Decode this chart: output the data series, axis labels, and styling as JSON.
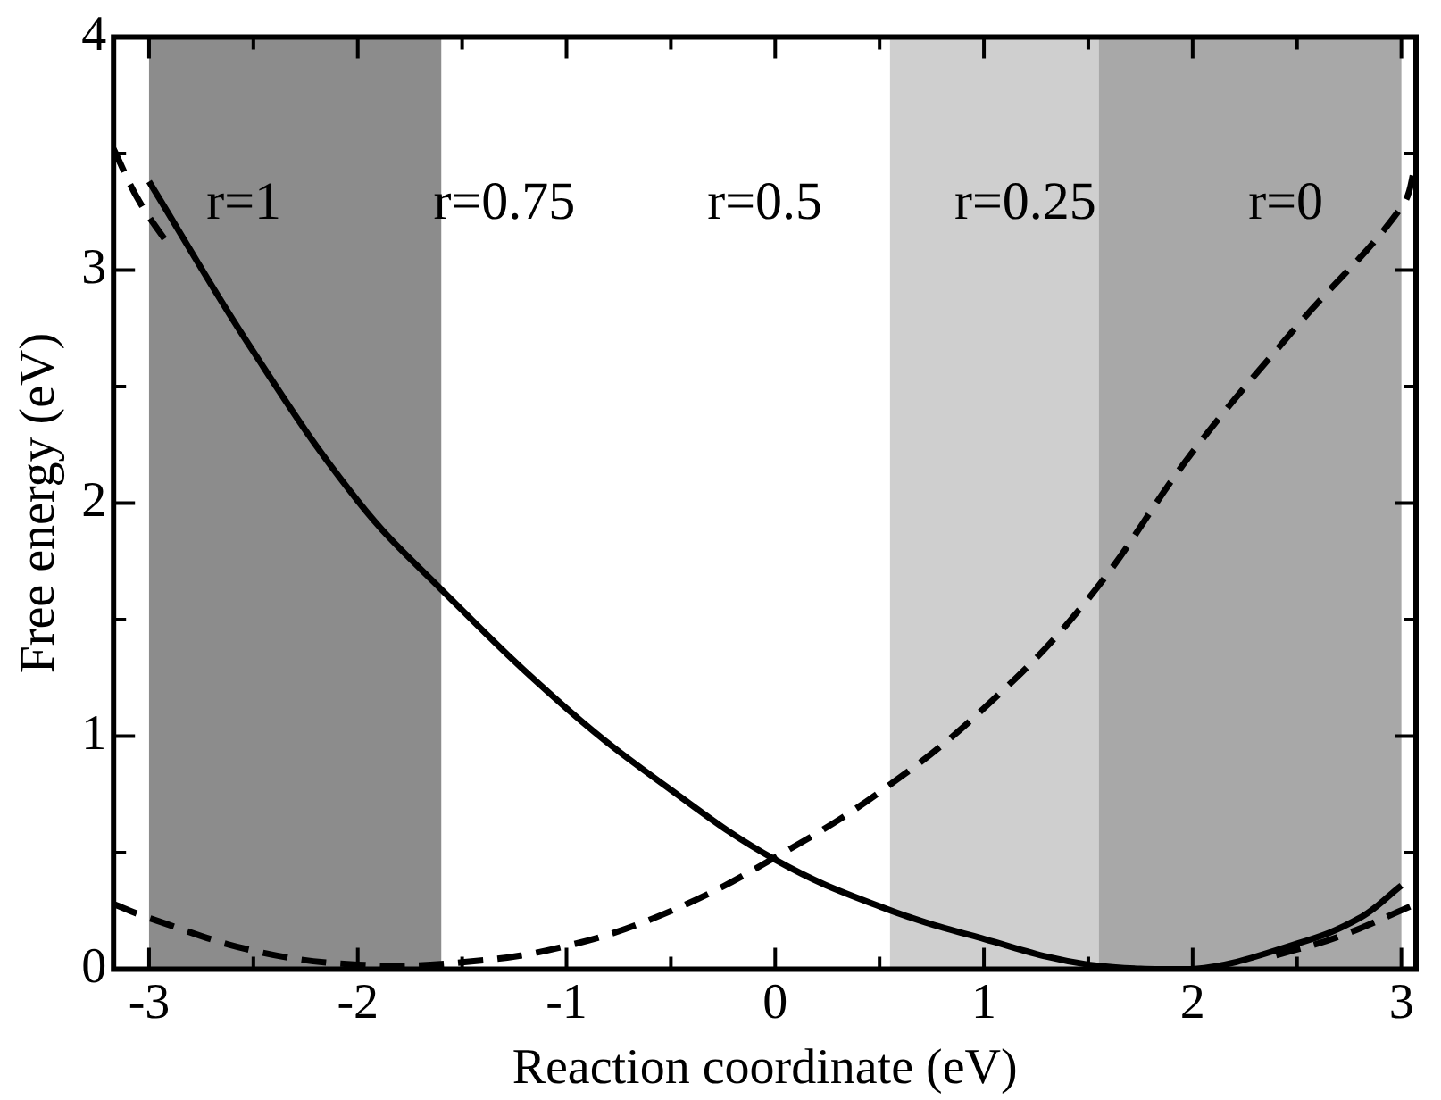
{
  "chart_data": {
    "type": "line",
    "xlabel": "Reaction coordinate (eV)",
    "ylabel": "Free energy (eV)",
    "xlim": [
      -3.17,
      3.07
    ],
    "ylim": [
      0,
      4
    ],
    "xticks": [
      -3,
      {
        "value": -2.5,
        "label": null
      },
      -2,
      {
        "value": -1.5,
        "label": null
      },
      -1,
      {
        "value": -0.5,
        "label": null
      },
      0,
      {
        "value": 0.5,
        "label": null
      },
      1,
      {
        "value": 1.5,
        "label": null
      },
      2,
      {
        "value": 2.5,
        "label": null
      },
      3
    ],
    "yticks": [
      0,
      {
        "value": 0.5,
        "label": null
      },
      1,
      {
        "value": 1.5,
        "label": null
      },
      2,
      {
        "value": 2.5,
        "label": null
      },
      3,
      {
        "value": 3.5,
        "label": null
      },
      4
    ],
    "grid": false,
    "legend": false,
    "marker": "none",
    "series": [
      {
        "color": "#000000",
        "line_style": "solid",
        "x": [
          -3,
          -2.5,
          -2,
          -1.6,
          -1,
          -0.5,
          0,
          0.5,
          1,
          1.5,
          2,
          2.5,
          2.8,
          3
        ],
        "values": [
          3.38,
          2.65,
          2.01,
          1.63,
          1.12,
          0.77,
          0.47,
          0.27,
          0.13,
          0.02,
          0.0,
          0.11,
          0.22,
          0.36
        ]
      },
      {
        "color": "#000000",
        "line_style": "dashed",
        "x": [
          -3.17,
          -3,
          -2.5,
          -2,
          -1.5,
          -1,
          -0.5,
          0,
          0.5,
          1,
          1.5,
          2,
          2.5,
          3,
          3.07
        ],
        "values": [
          0.28,
          0.22,
          0.08,
          0.02,
          0.03,
          0.1,
          0.25,
          0.48,
          0.76,
          1.12,
          1.59,
          2.22,
          2.76,
          3.27,
          3.46
        ]
      },
      {
        "color": "#000000",
        "line_style": "dashed",
        "x": [
          -3.17,
          -3.05,
          -2.9
        ],
        "values": [
          3.52,
          3.3,
          3.1
        ]
      },
      {
        "color": "#000000",
        "line_style": "dashed",
        "x": [
          2.4,
          2.7,
          3.07
        ],
        "values": [
          0.06,
          0.14,
          0.28
        ]
      }
    ],
    "bands": [
      {
        "axis": "x",
        "from": -3,
        "to": -1.6,
        "color": "#8c8c8c"
      },
      {
        "axis": "x",
        "from": 0.55,
        "to": 1.55,
        "color": "#cfcfcf"
      },
      {
        "axis": "x",
        "from": 1.55,
        "to": 3,
        "color": "#a8a8a8"
      }
    ],
    "annotations": [
      "r=1",
      "r=0.75",
      "r=0.5",
      "r=0.25",
      "r=0"
    ]
  }
}
